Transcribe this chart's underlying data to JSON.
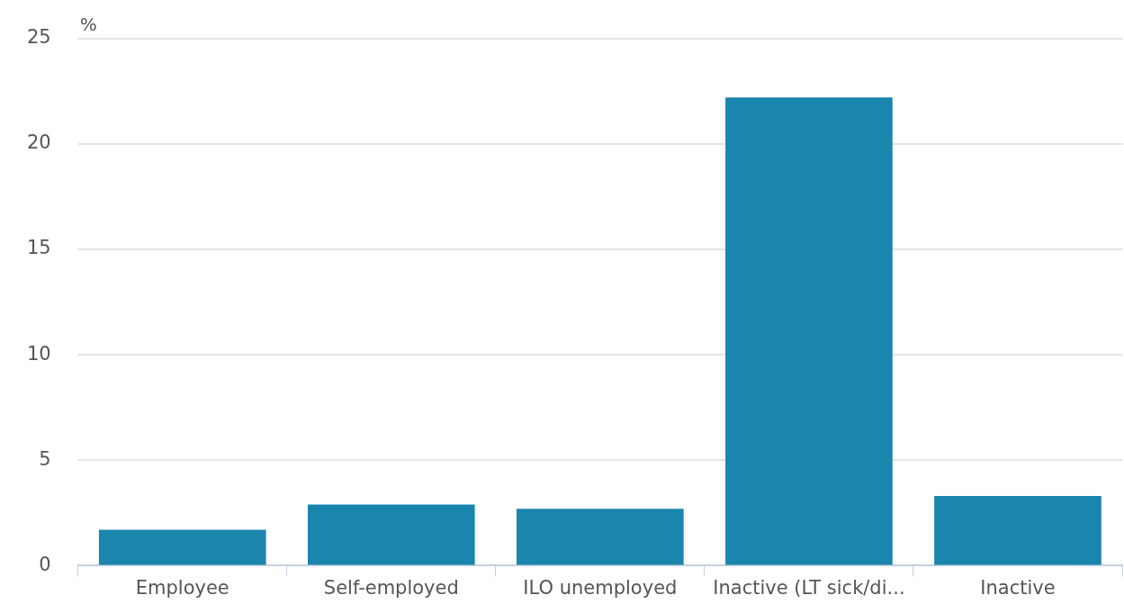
{
  "chart_data": {
    "type": "bar",
    "ylabel": "%",
    "categories": [
      "Employee",
      "Self-employed",
      "ILO unemployed",
      "Inactive (LT sick/di...",
      "Inactive"
    ],
    "values": [
      1.7,
      2.9,
      2.7,
      22.2,
      3.3
    ],
    "color": "#1a85ad",
    "ylim": [
      0,
      25
    ],
    "yticks": [
      0,
      5,
      10,
      15,
      20,
      25
    ],
    "grid": "y",
    "legend": false
  }
}
